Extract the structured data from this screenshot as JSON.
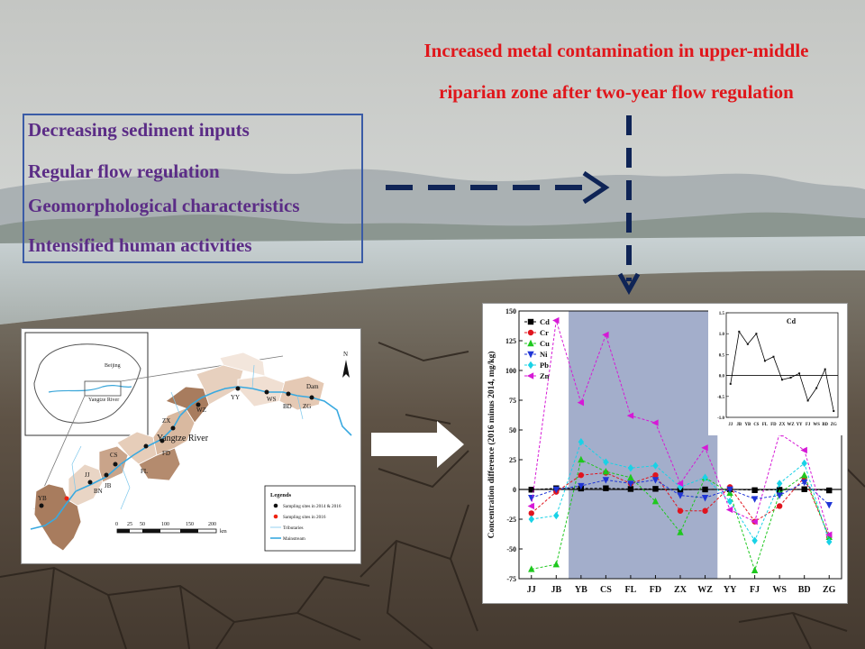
{
  "headline": {
    "line1": "Increased metal contamination in upper-middle",
    "line2": "riparian zone after two-year flow regulation"
  },
  "drivers": [
    "Decreasing sediment inputs",
    "Regular flow regulation",
    "Geomorphological characteristics",
    "Intensified human activities"
  ],
  "map": {
    "river_label": "Yangtze River",
    "scale_ticks": [
      "0",
      "25",
      "50",
      "100",
      "150",
      "200"
    ],
    "scale_unit": "km",
    "north_label": "N",
    "inset_labels": [
      "Beijing",
      "Yangtze River"
    ],
    "site_labels": [
      "JJ",
      "JB",
      "BN",
      "CS",
      "FL",
      "FD",
      "ZX",
      "YY",
      "WS",
      "BD",
      "ZG",
      "Dam",
      "YB",
      "WZ"
    ],
    "legend": {
      "title": "Legends",
      "items": [
        "Sampling sites in 2014 & 2016",
        "Sampling sites in 2016",
        "Tributaries",
        "Mainstream"
      ]
    }
  },
  "colors": {
    "headline": "#e0161b",
    "drivers": "#5b2c86",
    "box_border": "#3a5ba6",
    "arrow": "#0f2456",
    "shade": "#a3aecb"
  },
  "chart_data": [
    {
      "type": "line",
      "ylabel": "Concentration difference (2016 minus 2014, mg/kg)",
      "xlabel": "",
      "categories": [
        "JJ",
        "JB",
        "YB",
        "CS",
        "FL",
        "FD",
        "ZX",
        "WZ",
        "YY",
        "FJ",
        "WS",
        "BD",
        "ZG"
      ],
      "ylim": [
        -75,
        150
      ],
      "yticks": [
        "150",
        "125",
        "100",
        "75",
        "50",
        "25",
        "0",
        "-25",
        "-50",
        "-75"
      ],
      "shaded_range": [
        "YB",
        "WZ"
      ],
      "legend_position": "top-left",
      "series": [
        {
          "name": "Cd",
          "color": "#000000",
          "marker": "square",
          "values": [
            -0.2,
            1.0,
            0.8,
            1.0,
            0.4,
            0.5,
            -0.1,
            0.0,
            0.1,
            -0.6,
            -0.3,
            0.2,
            -0.8
          ]
        },
        {
          "name": "Cr",
          "color": "#e0141e",
          "marker": "circle",
          "values": [
            -20,
            -2,
            12,
            14,
            5,
            12,
            -18,
            -18,
            2,
            -27,
            -14,
            10,
            -40
          ]
        },
        {
          "name": "Cu",
          "color": "#1ec81e",
          "marker": "triangle-up",
          "values": [
            -67,
            -63,
            25,
            15,
            10,
            -10,
            -36,
            10,
            -3,
            -68,
            -3,
            12,
            -40
          ]
        },
        {
          "name": "Ni",
          "color": "#1f35d6",
          "marker": "triangle-down",
          "values": [
            -7,
            0,
            3,
            8,
            5,
            8,
            -5,
            -7,
            0,
            -8,
            -5,
            6,
            -13
          ]
        },
        {
          "name": "Pb",
          "color": "#19d2e6",
          "marker": "diamond",
          "values": [
            -25,
            -22,
            40,
            23,
            18,
            20,
            2,
            10,
            -10,
            -43,
            5,
            22,
            -44
          ]
        },
        {
          "name": "Zn",
          "color": "#d619d6",
          "marker": "triangle-left",
          "values": [
            -14,
            142,
            73,
            130,
            62,
            56,
            5,
            35,
            -17,
            -27,
            47,
            33,
            -38
          ]
        }
      ]
    },
    {
      "type": "line",
      "title": "Cd",
      "categories": [
        "JJ",
        "JB",
        "YB",
        "CS",
        "FL",
        "FD",
        "ZX",
        "WZ",
        "YY",
        "FJ",
        "WS",
        "BD",
        "ZG"
      ],
      "ylim": [
        -1.0,
        1.5
      ],
      "yticks": [
        "1.5",
        "1.0",
        "0.5",
        "0.0",
        "-0.5",
        "-1.0"
      ],
      "series": [
        {
          "color": "#000000",
          "values": [
            -0.2,
            1.05,
            0.75,
            1.0,
            0.35,
            0.45,
            -0.1,
            -0.05,
            0.05,
            -0.6,
            -0.3,
            0.15,
            -0.85
          ]
        }
      ]
    }
  ]
}
